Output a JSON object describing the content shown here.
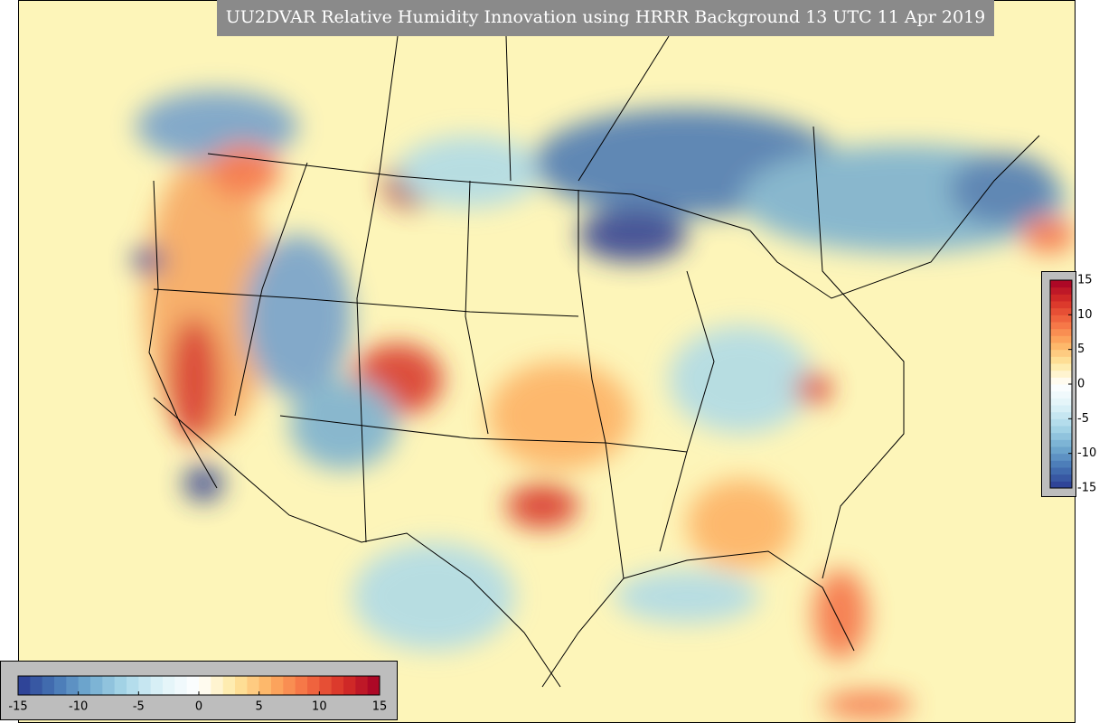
{
  "title": "UU2DVAR Relative Humidity Innovation using HRRR Background 13 UTC 11 Apr 2019",
  "colorbar": {
    "lim": [
      -15,
      15
    ],
    "ticks": [
      -15,
      -10,
      -5,
      0,
      5,
      10,
      15
    ],
    "levels": 30,
    "colors": [
      "#2b3a92",
      "#4575b4",
      "#74add1",
      "#abd9e9",
      "#e0f3f8",
      "#ffffff",
      "#fee8a0",
      "#fdae61",
      "#f46d43",
      "#d73027",
      "#a50026"
    ]
  }
}
